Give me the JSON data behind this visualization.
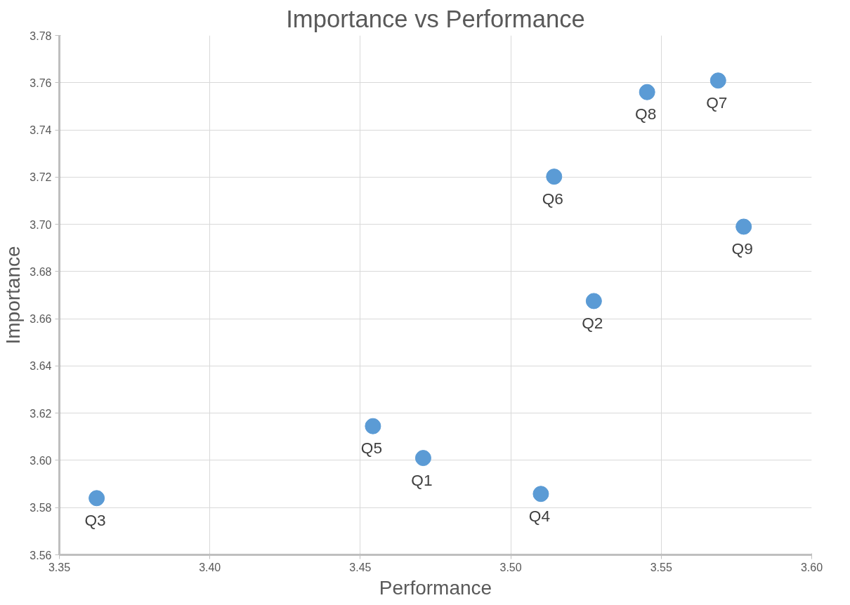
{
  "chart_data": {
    "type": "scatter",
    "title": "Importance vs Performance",
    "xlabel": "Performance",
    "ylabel": "Importance",
    "x": [
      3.4709,
      3.5276,
      3.3624,
      3.51,
      3.4542,
      3.5144,
      3.5689,
      3.5453,
      3.5774
    ],
    "series": [
      {
        "color": "#5b9bd5",
        "values": [
          3.601,
          3.6675,
          3.584,
          3.5858,
          3.6145,
          3.7202,
          3.7609,
          3.756,
          3.699
        ]
      }
    ],
    "annotations": [
      {
        "text": "Q1",
        "x": 3.4709,
        "y": 3.601
      },
      {
        "text": "Q2",
        "x": 3.5276,
        "y": 3.6675
      },
      {
        "text": "Q3",
        "x": 3.3624,
        "y": 3.584
      },
      {
        "text": "Q4",
        "x": 3.51,
        "y": 3.5858
      },
      {
        "text": "Q5",
        "x": 3.4542,
        "y": 3.6145
      },
      {
        "text": "Q6",
        "x": 3.5144,
        "y": 3.7202
      },
      {
        "text": "Q7",
        "x": 3.5689,
        "y": 3.7609
      },
      {
        "text": "Q8",
        "x": 3.5453,
        "y": 3.756
      },
      {
        "text": "Q9",
        "x": 3.5774,
        "y": 3.699
      }
    ],
    "xlim": [
      3.35,
      3.6
    ],
    "ylim": [
      3.56,
      3.78
    ],
    "xticks": [
      {
        "value": 3.35,
        "label": "3.35"
      },
      {
        "value": 3.4,
        "label": "3.40"
      },
      {
        "value": 3.45,
        "label": "3.45"
      },
      {
        "value": 3.5,
        "label": "3.50"
      },
      {
        "value": 3.55,
        "label": "3.55"
      },
      {
        "value": 3.6,
        "label": "3.60"
      }
    ],
    "yticks": [
      {
        "value": 3.56,
        "label": "3.56"
      },
      {
        "value": 3.58,
        "label": "3.58"
      },
      {
        "value": 3.6,
        "label": "3.60"
      },
      {
        "value": 3.62,
        "label": "3.62"
      },
      {
        "value": 3.64,
        "label": "3.64"
      },
      {
        "value": 3.66,
        "label": "3.66"
      },
      {
        "value": 3.68,
        "label": "3.68"
      },
      {
        "value": 3.7,
        "label": "3.70"
      },
      {
        "value": 3.72,
        "label": "3.72"
      },
      {
        "value": 3.74,
        "label": "3.74"
      },
      {
        "value": 3.76,
        "label": "3.76"
      },
      {
        "value": 3.78,
        "label": "3.78"
      }
    ],
    "grid": true,
    "marker": "circle"
  }
}
